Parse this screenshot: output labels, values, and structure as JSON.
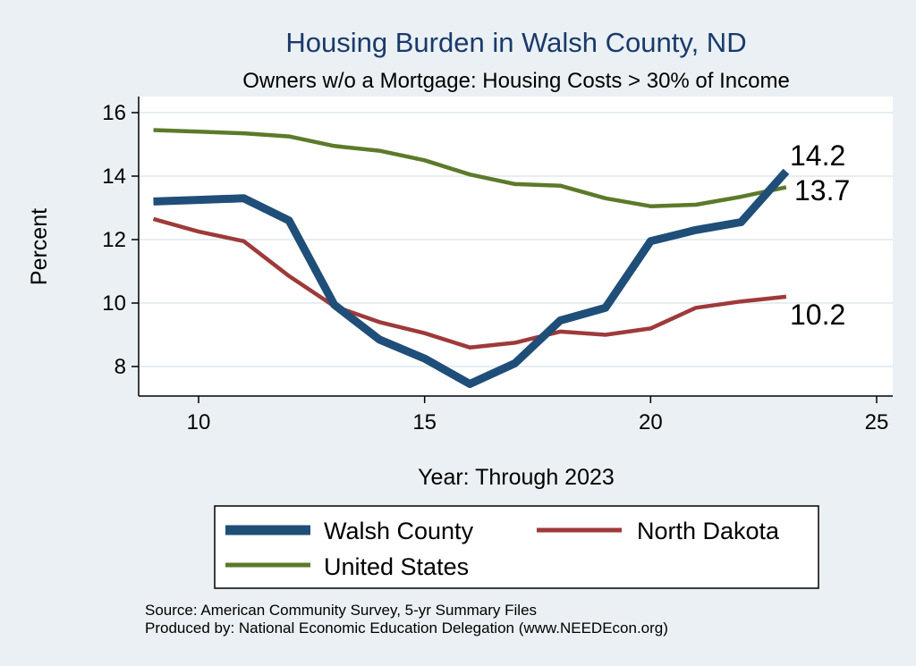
{
  "chart_data": {
    "type": "line",
    "title": "Housing Burden in Walsh County, ND",
    "subtitle": "Owners w/o a Mortgage: Housing Costs > 30% of Income",
    "xlabel": "Year: Through 2023",
    "ylabel": "Percent",
    "xlim": [
      9,
      25
    ],
    "ylim": [
      7,
      16.5
    ],
    "x_ticks": [
      10,
      15,
      20,
      25
    ],
    "y_ticks": [
      8,
      10,
      12,
      14,
      16
    ],
    "grid": true,
    "x": [
      9,
      10,
      11,
      12,
      13,
      14,
      15,
      16,
      17,
      18,
      19,
      20,
      21,
      22,
      23
    ],
    "series": [
      {
        "name": "Walsh County",
        "color": "#1f4e79",
        "values": [
          13.2,
          13.25,
          13.3,
          12.6,
          9.95,
          8.85,
          8.25,
          7.45,
          8.1,
          9.45,
          9.85,
          11.95,
          12.3,
          12.55,
          14.15
        ],
        "end_label": "14.2"
      },
      {
        "name": "North Dakota",
        "color": "#9e3a3a",
        "values": [
          12.65,
          12.25,
          11.95,
          10.85,
          9.9,
          9.4,
          9.05,
          8.6,
          8.75,
          9.1,
          9.0,
          9.2,
          9.85,
          10.05,
          10.2
        ],
        "end_label": "10.2"
      },
      {
        "name": "United States",
        "color": "#5c7a29",
        "values": [
          15.45,
          15.4,
          15.35,
          15.25,
          14.95,
          14.8,
          14.5,
          14.05,
          13.75,
          13.7,
          13.3,
          13.05,
          13.1,
          13.35,
          13.65
        ],
        "end_label": "13.7"
      }
    ],
    "legend_position": "bottom",
    "source_note": "Source: American Community Survey, 5-yr Summary Files",
    "producer_note": "Produced by: National Economic Education Delegation (www.NEEDEcon.org)"
  }
}
